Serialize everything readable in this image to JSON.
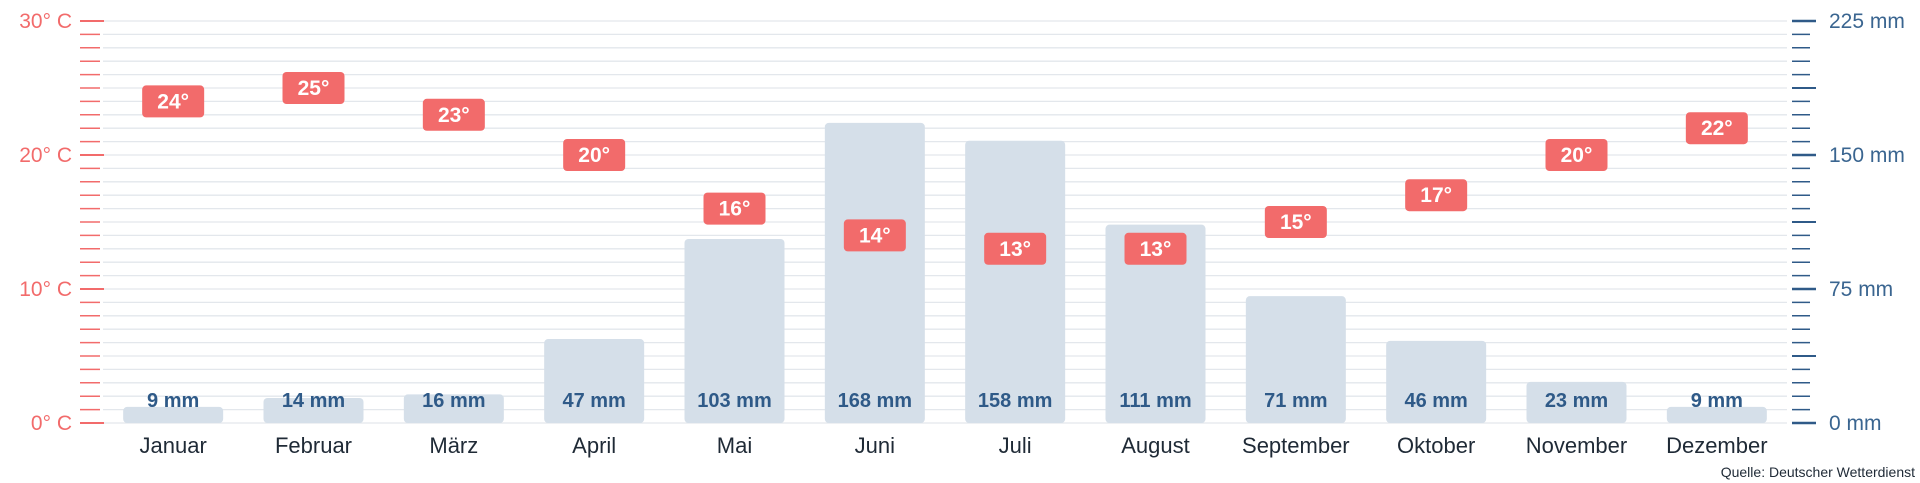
{
  "chart_data": {
    "type": "bar+line",
    "categories": [
      "Januar",
      "Februar",
      "März",
      "April",
      "Mai",
      "Juni",
      "Juli",
      "August",
      "September",
      "Oktober",
      "November",
      "Dezember"
    ],
    "series": [
      {
        "name": "",
        "axis": "right",
        "type": "bar",
        "unit": "mm",
        "values": [
          9,
          14,
          16,
          47,
          103,
          168,
          158,
          111,
          71,
          46,
          23,
          9
        ],
        "labels": [
          "9 mm",
          "14 mm",
          "16 mm",
          "47 mm",
          "103 mm",
          "168 mm",
          "158 mm",
          "111 mm",
          "71 mm",
          "46 mm",
          "23 mm",
          "9 mm"
        ]
      },
      {
        "name": "",
        "axis": "left",
        "type": "label-markers",
        "unit": "°C",
        "values": [
          24,
          25,
          23,
          20,
          16,
          14,
          13,
          13,
          15,
          17,
          20,
          22
        ],
        "labels": [
          "24°",
          "25°",
          "23°",
          "20°",
          "16°",
          "14°",
          "13°",
          "13°",
          "15°",
          "17°",
          "20°",
          "22°"
        ]
      }
    ],
    "y_left": {
      "range": [
        0,
        30
      ],
      "ticks": [
        0,
        10,
        20,
        30
      ],
      "tick_labels": [
        "0° C",
        "10° C",
        "20° C",
        "30° C"
      ]
    },
    "y_right": {
      "range": [
        0,
        225
      ],
      "ticks": [
        0,
        75,
        150,
        225
      ],
      "tick_labels": [
        "0 mm",
        "75 mm",
        "150 mm",
        "225 mm"
      ]
    },
    "grid": true,
    "source": "Quelle: Deutscher Wetterdienst",
    "colors": {
      "temperature": "#f26b6b",
      "precipitation_bar": "#d5dfe9",
      "precipitation_text": "#2f5a88",
      "grid": "#e3e7ec"
    }
  }
}
